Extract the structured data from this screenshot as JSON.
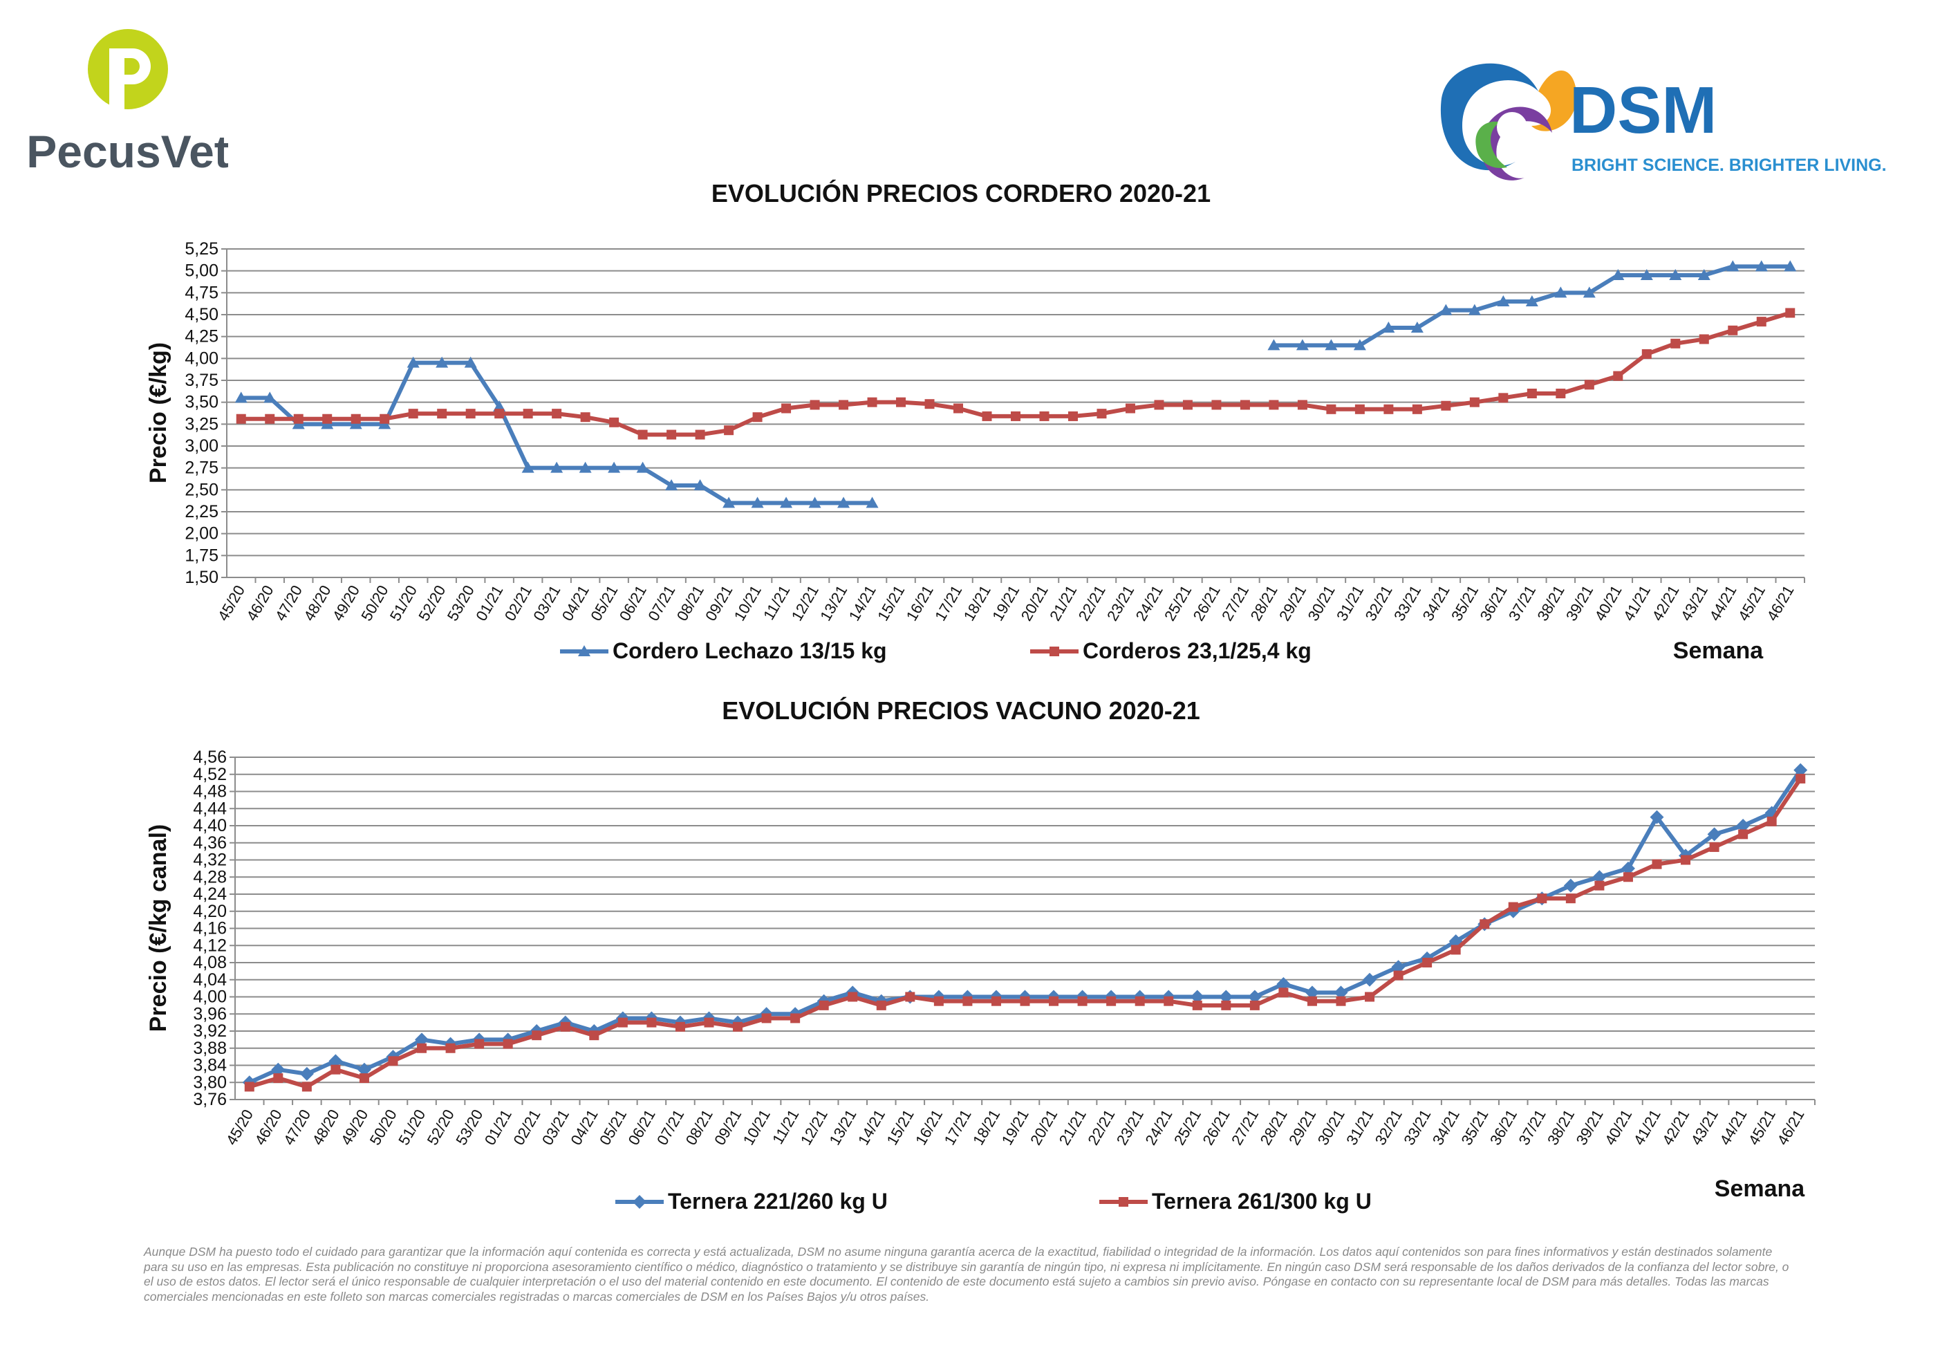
{
  "branding": {
    "pecusvet_name": "PecusVet",
    "pecusvet_symbol": "P",
    "dsm_name": "DSM",
    "dsm_tagline": "BRIGHT SCIENCE. BRIGHTER LIVING.",
    "colors": {
      "pecus_green": "#b5cc18",
      "pecus_text": "#4a5560",
      "dsm_blue": "#1f6fb5",
      "dsm_tagline": "#2a8fd0"
    }
  },
  "disclaimer": "Aunque DSM ha puesto todo el cuidado para garantizar que la información aquí contenida es correcta y está actualizada, DSM no asume ninguna garantía acerca de la exactitud, fiabilidad o integridad de la información. Los datos aquí contenidos son para fines informativos y están destinados solamente para su uso en las empresas. Esta publicación no constituye ni proporciona asesoramiento científico o médico, diagnóstico o tratamiento y se distribuye sin garantía de ningún tipo, ni expresa ni implícitamente. En ningún caso DSM será responsable de los daños derivados de la confianza del lector sobre, o el uso de estos datos. El lector será el único responsable de cualquier interpretación o el uso del material contenido en este documento. El contenido de este documento está sujeto a cambios sin previo aviso. Póngase en contacto con su representante local de DSM para más detalles. Todas las marcas comerciales mencionadas en este folleto son marcas comerciales registradas o marcas comerciales de DSM en los Países Bajos y/u otros países.",
  "chart_data": [
    {
      "type": "line",
      "title": "EVOLUCIÓN PRECIOS CORDERO 2020-21",
      "ylabel": "Precio (€/kg)",
      "xlabel": "Semana",
      "ylim": [
        1.5,
        5.25
      ],
      "ystep": 0.25,
      "grid": true,
      "legend": "bottom",
      "categories": [
        "45/20",
        "46/20",
        "47/20",
        "48/20",
        "49/20",
        "50/20",
        "51/20",
        "52/20",
        "53/20",
        "01/21",
        "02/21",
        "03/21",
        "04/21",
        "05/21",
        "06/21",
        "07/21",
        "08/21",
        "09/21",
        "10/21",
        "11/21",
        "12/21",
        "13/21",
        "14/21",
        "15/21",
        "16/21",
        "17/21",
        "18/21",
        "19/21",
        "20/21",
        "21/21",
        "22/21",
        "23/21",
        "24/21",
        "25/21",
        "26/21",
        "27/21",
        "28/21",
        "29/21",
        "30/21",
        "31/21",
        "32/21",
        "33/21",
        "34/21",
        "35/21",
        "36/21",
        "37/21",
        "38/21",
        "39/21",
        "40/21",
        "41/21",
        "42/21",
        "43/21",
        "44/21",
        "45/21",
        "46/21"
      ],
      "series": [
        {
          "name": "Cordero Lechazo 13/15 kg",
          "color": "#4a7ebb",
          "marker": "triangle",
          "values": [
            3.55,
            3.55,
            3.25,
            3.25,
            3.25,
            3.25,
            3.95,
            3.95,
            3.95,
            3.45,
            2.75,
            2.75,
            2.75,
            2.75,
            2.75,
            2.55,
            2.55,
            2.35,
            2.35,
            2.35,
            2.35,
            2.35,
            2.35,
            null,
            null,
            null,
            null,
            null,
            null,
            null,
            null,
            null,
            null,
            null,
            null,
            null,
            4.15,
            4.15,
            4.15,
            4.15,
            4.35,
            4.35,
            4.55,
            4.55,
            4.65,
            4.65,
            4.75,
            4.75,
            4.95,
            4.95,
            4.95,
            4.95,
            5.05,
            5.05,
            5.05
          ]
        },
        {
          "name": "Corderos 23,1/25,4 kg",
          "color": "#be4b48",
          "marker": "square",
          "values": [
            3.31,
            3.31,
            3.31,
            3.31,
            3.31,
            3.31,
            3.37,
            3.37,
            3.37,
            3.37,
            3.37,
            3.37,
            3.33,
            3.27,
            3.13,
            3.13,
            3.13,
            3.18,
            3.33,
            3.43,
            3.47,
            3.47,
            3.5,
            3.5,
            3.48,
            3.43,
            3.34,
            3.34,
            3.34,
            3.34,
            3.37,
            3.43,
            3.47,
            3.47,
            3.47,
            3.47,
            3.47,
            3.47,
            3.42,
            3.42,
            3.42,
            3.42,
            3.46,
            3.5,
            3.55,
            3.6,
            3.6,
            3.7,
            3.8,
            4.05,
            4.17,
            4.22,
            4.32,
            4.42,
            4.52
          ]
        }
      ]
    },
    {
      "type": "line",
      "title": "EVOLUCIÓN PRECIOS VACUNO 2020-21",
      "ylabel": "Precio (€/kg canal)",
      "xlabel": "Semana",
      "ylim": [
        3.76,
        4.56
      ],
      "ystep": 0.04,
      "grid": true,
      "legend": "bottom",
      "categories": [
        "45/20",
        "46/20",
        "47/20",
        "48/20",
        "49/20",
        "50/20",
        "51/20",
        "52/20",
        "53/20",
        "01/21",
        "02/21",
        "03/21",
        "04/21",
        "05/21",
        "06/21",
        "07/21",
        "08/21",
        "09/21",
        "10/21",
        "11/21",
        "12/21",
        "13/21",
        "14/21",
        "15/21",
        "16/21",
        "17/21",
        "18/21",
        "19/21",
        "20/21",
        "21/21",
        "22/21",
        "23/21",
        "24/21",
        "25/21",
        "26/21",
        "27/21",
        "28/21",
        "29/21",
        "30/21",
        "31/21",
        "32/21",
        "33/21",
        "34/21",
        "35/21",
        "36/21",
        "37/21",
        "38/21",
        "39/21",
        "40/21",
        "41/21",
        "42/21",
        "43/21",
        "44/21",
        "45/21",
        "46/21"
      ],
      "series": [
        {
          "name": "Ternera 221/260 kg U",
          "color": "#4a7ebb",
          "marker": "diamond",
          "values": [
            3.8,
            3.83,
            3.82,
            3.85,
            3.83,
            3.86,
            3.9,
            3.89,
            3.9,
            3.9,
            3.92,
            3.94,
            3.92,
            3.95,
            3.95,
            3.94,
            3.95,
            3.94,
            3.96,
            3.96,
            3.99,
            4.01,
            3.99,
            4.0,
            4.0,
            4.0,
            4.0,
            4.0,
            4.0,
            4.0,
            4.0,
            4.0,
            4.0,
            4.0,
            4.0,
            4.0,
            4.03,
            4.01,
            4.01,
            4.04,
            4.07,
            4.09,
            4.13,
            4.17,
            4.2,
            4.23,
            4.26,
            4.28,
            4.3,
            4.42,
            4.33,
            4.38,
            4.4,
            4.43,
            4.53
          ]
        },
        {
          "name": "Ternera 261/300 kg U",
          "color": "#be4b48",
          "marker": "square",
          "values": [
            3.79,
            3.81,
            3.79,
            3.83,
            3.81,
            3.85,
            3.88,
            3.88,
            3.89,
            3.89,
            3.91,
            3.93,
            3.91,
            3.94,
            3.94,
            3.93,
            3.94,
            3.93,
            3.95,
            3.95,
            3.98,
            4.0,
            3.98,
            4.0,
            3.99,
            3.99,
            3.99,
            3.99,
            3.99,
            3.99,
            3.99,
            3.99,
            3.99,
            3.98,
            3.98,
            3.98,
            4.01,
            3.99,
            3.99,
            4.0,
            4.05,
            4.08,
            4.11,
            4.17,
            4.21,
            4.23,
            4.23,
            4.26,
            4.28,
            4.31,
            4.32,
            4.35,
            4.38,
            4.41,
            4.51
          ]
        }
      ]
    }
  ]
}
